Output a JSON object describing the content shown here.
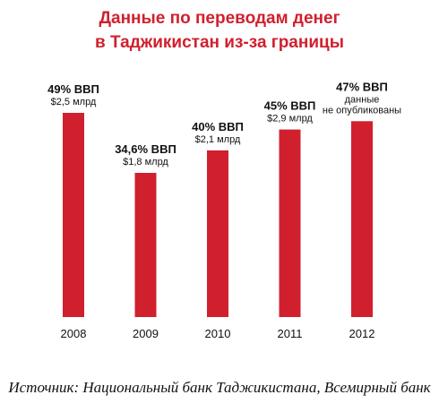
{
  "title_line1": "Данные по переводам денег",
  "title_line2": "в Таджикистан из-за границы",
  "colors": {
    "bar": "#d0202e",
    "title": "#d0202e",
    "text": "#111111"
  },
  "chart_data": {
    "type": "bar",
    "title": "Данные по переводам денег в Таджикистан из-за границы",
    "categories": [
      "2008",
      "2009",
      "2010",
      "2011",
      "2012"
    ],
    "values": [
      49,
      34.6,
      40,
      45,
      47
    ],
    "unit": "% ВВП",
    "value_labels": [
      "49% ВВП",
      "34,6% ВВП",
      "40% ВВП",
      "45% ВВП",
      "47% ВВП"
    ],
    "sub_labels": [
      [
        "$2,5 млрд"
      ],
      [
        "$1,8 млрд"
      ],
      [
        "$2,1 млрд"
      ],
      [
        "$2,9 млрд"
      ],
      [
        "данные",
        "не опубликованы"
      ]
    ],
    "xlabel": "",
    "ylabel": "",
    "ylim": [
      0,
      49
    ],
    "grid": false,
    "legend": "none"
  },
  "source": "Источник: Национальный банк Таджикистана, Всемирный банк"
}
